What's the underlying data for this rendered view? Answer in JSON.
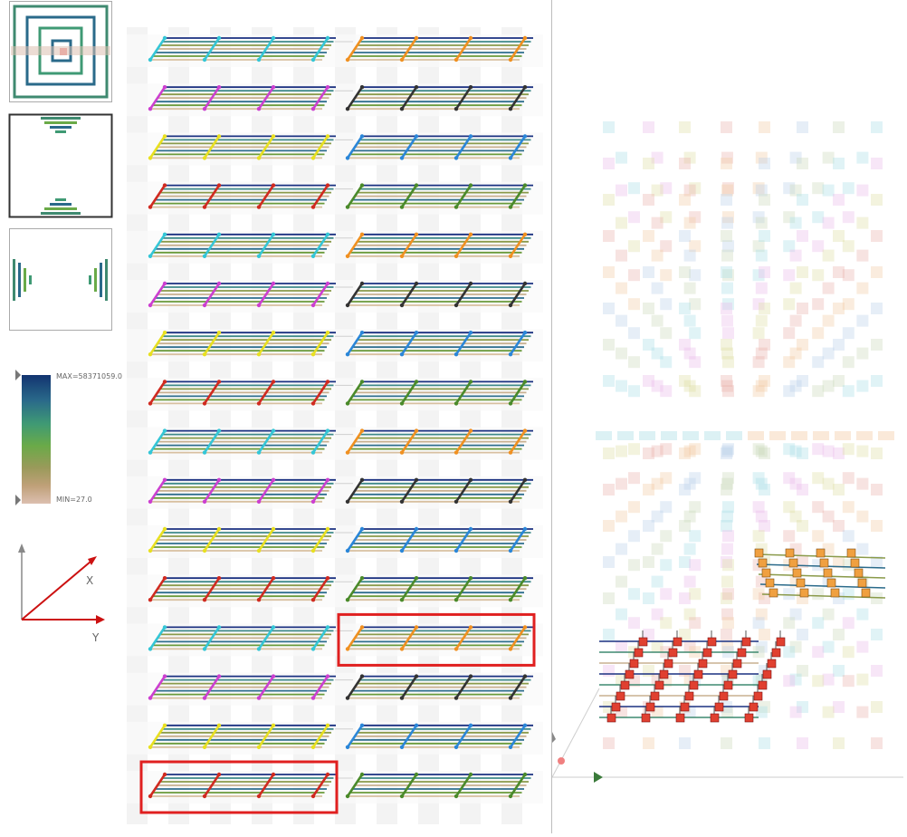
{
  "views": {
    "thumbnails": [
      {
        "name": "top-view",
        "selected": false
      },
      {
        "name": "front-view",
        "selected": true
      },
      {
        "name": "side-view",
        "selected": false
      }
    ],
    "colorbar": {
      "max_label": "MAX=58371059.0",
      "min_label": "MIN=27.0",
      "colors": [
        "#123470",
        "#2a6a8a",
        "#3f9a74",
        "#6aaa48",
        "#9a9a5a",
        "#bfa078",
        "#dcbfb0"
      ]
    },
    "axes": {
      "x_label": "X",
      "y_label": "Y",
      "axis_color": "#cc1111",
      "frame_color": "#888888"
    }
  },
  "center": {
    "rows": 16,
    "groups_per_row": 2,
    "frames_per_group": 3,
    "row_accents": [
      [
        "#34c6d6",
        "#f09020"
      ],
      [
        "#cc3fd0",
        "#333333"
      ],
      [
        "#e8e020",
        "#2a86d8"
      ],
      [
        "#d02a20",
        "#4a8a2a"
      ]
    ],
    "bar_colors": [
      "#1a3080",
      "#3f8a8a",
      "#8a9a4a",
      "#c8b090",
      "#2e6e8e",
      "#6a9a3a",
      "#d8c0a0"
    ],
    "highlight_color": "#e02020",
    "highlights": [
      {
        "row": 12,
        "group": 1
      },
      {
        "row": 15,
        "group": 0
      }
    ]
  },
  "right": {
    "cluster_colors": [
      "#a7dde4",
      "#e8b8e8",
      "#dedca0",
      "#e8b0a8",
      "#f2c8a0",
      "#b8cde8",
      "#c8d8b8"
    ],
    "active_colors": [
      "#e04030",
      "#f0a040"
    ],
    "axis_colors": [
      "#6a9a6a",
      "#3a7a3a"
    ],
    "origin_color": "#f08080"
  }
}
